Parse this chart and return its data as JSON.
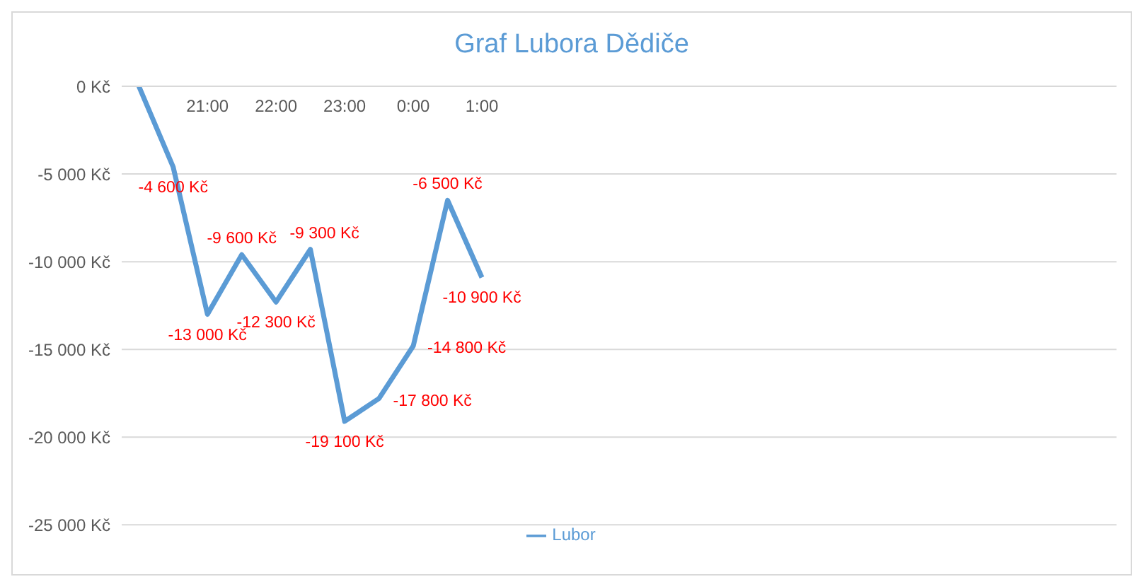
{
  "chart_data": {
    "type": "line",
    "title": "Graf Lubora Dědiče",
    "categories": [
      null,
      null,
      "21:00",
      null,
      "22:00",
      null,
      "23:00",
      null,
      "0:00",
      null,
      "1:00",
      null,
      null,
      null,
      null,
      null,
      null,
      null,
      null,
      null,
      null,
      null,
      null,
      null,
      null,
      null,
      null,
      null,
      null
    ],
    "series": [
      {
        "name": "Lubor",
        "color": "#5b9bd5",
        "values": [
          0,
          -4600,
          -13000,
          -9600,
          -12300,
          -9300,
          -19100,
          -17800,
          -14800,
          -6500,
          -10900,
          null,
          null,
          null,
          null,
          null,
          null,
          null,
          null,
          null,
          null,
          null,
          null,
          null,
          null,
          null,
          null,
          null,
          null
        ],
        "value_labels": [
          null,
          "-4 600 Kč",
          "-13 000 Kč",
          "-9 600 Kč",
          "-12 300 Kč",
          "-9 300 Kč",
          "-19 100 Kč",
          "-17 800 Kč",
          "-14 800 Kč",
          "-6 500 Kč",
          "-10 900 Kč",
          null,
          null,
          null,
          null,
          null,
          null,
          null,
          null,
          null,
          null,
          null,
          null,
          null,
          null,
          null,
          null,
          null,
          null
        ]
      }
    ],
    "ylim": [
      -25000,
      0
    ],
    "yticks": [
      {
        "value": 0,
        "label": "0 Kč"
      },
      {
        "value": -5000,
        "label": "-5 000 Kč"
      },
      {
        "value": -10000,
        "label": "-10 000 Kč"
      },
      {
        "value": -15000,
        "label": "-15 000 Kč"
      },
      {
        "value": -20000,
        "label": "-20 000 Kč"
      },
      {
        "value": -25000,
        "label": "-25 000 Kč"
      }
    ],
    "grid": "y",
    "legend": "bottom",
    "marker": "none",
    "line_style": "solid"
  }
}
